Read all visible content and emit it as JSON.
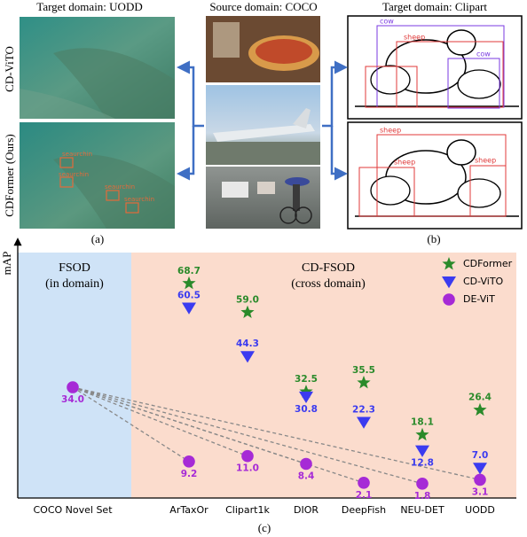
{
  "figure": {
    "title_left": "Target domain: UODD",
    "title_center": "Source domain: COCO",
    "title_right": "Target domain: Clipart",
    "row_labels": [
      "CD-ViTO",
      "CDFormer (Ours)"
    ],
    "caption_a": "(a)",
    "caption_b": "(b)",
    "uodd_detections": [
      "seaurchin",
      "seaurchin",
      "seaurchin",
      "seaurchin"
    ],
    "clipart_top_labels": [
      "cow",
      "sheep",
      "cow"
    ],
    "clipart_bottom_labels": [
      "sheep",
      "sheep",
      "sheep"
    ]
  },
  "chart_data": {
    "type": "scatter",
    "ylabel": "mAP",
    "caption": "(c)",
    "regions": [
      {
        "title": "FSOD",
        "subtitle": "(in domain)",
        "color": "#cfe3f7"
      },
      {
        "title": "CD-FSOD",
        "subtitle": "(cross domain)",
        "color": "#fbdccd"
      }
    ],
    "categories": [
      "COCO Novel Set",
      "ArTaxOr",
      "Clipart1k",
      "DIOR",
      "DeepFish",
      "NEU-DET",
      "UODD"
    ],
    "series": [
      {
        "name": "CDFormer",
        "color": "#2a8a2a",
        "marker": "star",
        "values": [
          null,
          68.7,
          59.0,
          32.5,
          35.5,
          18.1,
          26.4
        ],
        "value_labels": [
          null,
          "68.7",
          "59.0",
          "32.5",
          "35.5",
          "18.1",
          "26.4"
        ]
      },
      {
        "name": "CD-ViTO",
        "color": "#3b3bf0",
        "marker": "triangle",
        "values": [
          null,
          60.5,
          44.3,
          30.8,
          22.3,
          12.8,
          7.0
        ],
        "value_labels": [
          null,
          "60.5",
          "44.3",
          "30.8",
          "22.3",
          "12.8",
          "7.0"
        ]
      },
      {
        "name": "DE-ViT",
        "color": "#a62ad6",
        "marker": "circle",
        "values": [
          34.0,
          9.2,
          11.0,
          8.4,
          2.1,
          1.8,
          3.1
        ],
        "value_labels": [
          "34.0",
          "9.2",
          "11.0",
          "8.4",
          "2.1",
          "1.8",
          "3.1"
        ]
      }
    ],
    "ylim": [
      -3,
      79
    ],
    "legend": "upper right"
  }
}
